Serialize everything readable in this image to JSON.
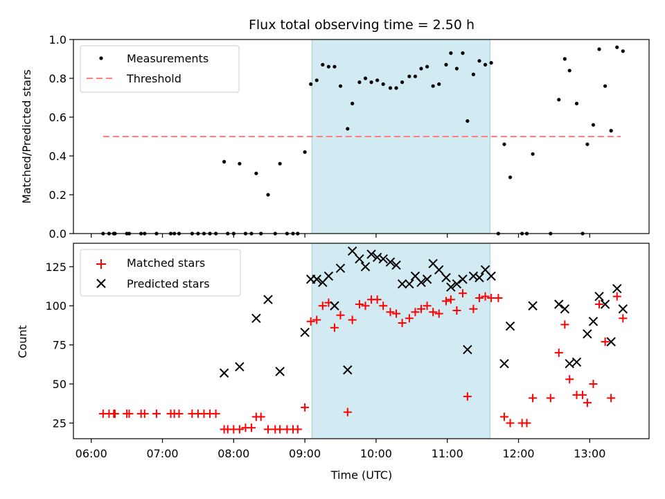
{
  "title": "Flux total observing time = 2.50 h",
  "colors": {
    "measurement": "#000000",
    "threshold": "#ff7f7f",
    "matched": "#ff0000",
    "predicted": "#000000",
    "shade": "#add8e6"
  },
  "chart_data": [
    {
      "type": "scatter",
      "ylabel": "Matched/Predicted stars",
      "xlabel": "",
      "xlim": [
        "05:45",
        "13:50"
      ],
      "ylim": [
        0,
        1.0
      ],
      "yticks": [
        "0.0",
        "0.2",
        "0.4",
        "0.6",
        "0.8",
        "1.0"
      ],
      "grid": false,
      "legend": "top-left",
      "shaded_interval": [
        "09:06",
        "11:36"
      ],
      "threshold": {
        "name": "Threshold",
        "y": 0.5,
        "x": [
          "06:10",
          "13:26"
        ]
      },
      "series": [
        {
          "name": "Measurements",
          "points": [
            [
              "06:10",
              0
            ],
            [
              "06:15",
              0
            ],
            [
              "06:19",
              0
            ],
            [
              "06:20",
              0
            ],
            [
              "06:30",
              0
            ],
            [
              "06:32",
              0
            ],
            [
              "06:42",
              0
            ],
            [
              "06:45",
              0
            ],
            [
              "06:55",
              0
            ],
            [
              "07:07",
              0
            ],
            [
              "07:10",
              0
            ],
            [
              "07:14",
              0
            ],
            [
              "07:25",
              0
            ],
            [
              "07:30",
              0
            ],
            [
              "07:35",
              0
            ],
            [
              "07:40",
              0
            ],
            [
              "07:45",
              0
            ],
            [
              "07:52",
              0.37
            ],
            [
              "07:55",
              0
            ],
            [
              "08:00",
              0
            ],
            [
              "08:05",
              0.36
            ],
            [
              "08:10",
              0
            ],
            [
              "08:15",
              0
            ],
            [
              "08:19",
              0.31
            ],
            [
              "08:23",
              0
            ],
            [
              "08:29",
              0.2
            ],
            [
              "08:35",
              0
            ],
            [
              "08:39",
              0.36
            ],
            [
              "08:45",
              0
            ],
            [
              "08:50",
              0
            ],
            [
              "08:54",
              0
            ],
            [
              "09:00",
              0.42
            ],
            [
              "09:05",
              0.77
            ],
            [
              "09:10",
              0.79
            ],
            [
              "09:15",
              0.87
            ],
            [
              "09:20",
              0.86
            ],
            [
              "09:25",
              0.86
            ],
            [
              "09:30",
              0.76
            ],
            [
              "09:36",
              0.54
            ],
            [
              "09:40",
              0.67
            ],
            [
              "09:46",
              0.78
            ],
            [
              "09:51",
              0.8
            ],
            [
              "09:56",
              0.78
            ],
            [
              "10:01",
              0.79
            ],
            [
              "10:06",
              0.77
            ],
            [
              "10:12",
              0.75
            ],
            [
              "10:17",
              0.75
            ],
            [
              "10:22",
              0.78
            ],
            [
              "10:28",
              0.81
            ],
            [
              "10:33",
              0.81
            ],
            [
              "10:38",
              0.85
            ],
            [
              "10:43",
              0.86
            ],
            [
              "10:48",
              0.76
            ],
            [
              "10:53",
              0.77
            ],
            [
              "10:59",
              0.87
            ],
            [
              "11:03",
              0.93
            ],
            [
              "11:08",
              0.85
            ],
            [
              "11:13",
              0.93
            ],
            [
              "11:17",
              0.58
            ],
            [
              "11:22",
              0.82
            ],
            [
              "11:27",
              0.89
            ],
            [
              "11:32",
              0.87
            ],
            [
              "11:37",
              0.88
            ],
            [
              "11:43",
              0
            ],
            [
              "11:48",
              0.46
            ],
            [
              "11:53",
              0.29
            ],
            [
              "12:03",
              0
            ],
            [
              "12:07",
              0
            ],
            [
              "12:12",
              0.41
            ],
            [
              "12:27",
              0
            ],
            [
              "12:34",
              0.69
            ],
            [
              "12:39",
              0.9
            ],
            [
              "12:43",
              0.84
            ],
            [
              "12:49",
              0.67
            ],
            [
              "12:54",
              0
            ],
            [
              "12:58",
              0.46
            ],
            [
              "13:03",
              0.56
            ],
            [
              "13:08",
              0.95
            ],
            [
              "13:13",
              0.76
            ],
            [
              "13:18",
              0.53
            ],
            [
              "13:23",
              0.96
            ],
            [
              "13:28",
              0.94
            ]
          ]
        }
      ]
    },
    {
      "type": "scatter",
      "xlabel": "Time (UTC)",
      "ylabel": "Count",
      "xlim": [
        "05:45",
        "13:50"
      ],
      "ylim": [
        15,
        140
      ],
      "yticks": [
        "25",
        "50",
        "75",
        "100",
        "125"
      ],
      "xticks": [
        "06:00",
        "07:00",
        "08:00",
        "09:00",
        "10:00",
        "11:00",
        "12:00",
        "13:00"
      ],
      "grid": false,
      "legend": "top-left",
      "shaded_interval": [
        "09:06",
        "11:36"
      ],
      "series": [
        {
          "name": "Matched stars",
          "marker": "+",
          "points": [
            [
              "06:10",
              31
            ],
            [
              "06:15",
              31
            ],
            [
              "06:19",
              31
            ],
            [
              "06:20",
              31
            ],
            [
              "06:30",
              31
            ],
            [
              "06:32",
              31
            ],
            [
              "06:42",
              31
            ],
            [
              "06:45",
              31
            ],
            [
              "06:55",
              31
            ],
            [
              "07:07",
              31
            ],
            [
              "07:10",
              31
            ],
            [
              "07:14",
              31
            ],
            [
              "07:25",
              31
            ],
            [
              "07:30",
              31
            ],
            [
              "07:35",
              31
            ],
            [
              "07:40",
              31
            ],
            [
              "07:45",
              31
            ],
            [
              "07:52",
              21
            ],
            [
              "07:55",
              21
            ],
            [
              "08:00",
              21
            ],
            [
              "08:05",
              21
            ],
            [
              "08:10",
              22
            ],
            [
              "08:15",
              22
            ],
            [
              "08:19",
              29
            ],
            [
              "08:23",
              29
            ],
            [
              "08:29",
              21
            ],
            [
              "08:35",
              21
            ],
            [
              "08:39",
              21
            ],
            [
              "08:45",
              21
            ],
            [
              "08:50",
              21
            ],
            [
              "08:54",
              21
            ],
            [
              "09:00",
              35
            ],
            [
              "09:05",
              90
            ],
            [
              "09:10",
              91
            ],
            [
              "09:15",
              100
            ],
            [
              "09:20",
              102
            ],
            [
              "09:25",
              86
            ],
            [
              "09:30",
              94
            ],
            [
              "09:36",
              32
            ],
            [
              "09:40",
              91
            ],
            [
              "09:46",
              101
            ],
            [
              "09:51",
              100
            ],
            [
              "09:56",
              104
            ],
            [
              "10:01",
              104
            ],
            [
              "10:06",
              100
            ],
            [
              "10:12",
              96
            ],
            [
              "10:17",
              95
            ],
            [
              "10:22",
              89
            ],
            [
              "10:28",
              92
            ],
            [
              "10:33",
              96
            ],
            [
              "10:38",
              98
            ],
            [
              "10:43",
              100
            ],
            [
              "10:48",
              96
            ],
            [
              "10:53",
              95
            ],
            [
              "10:59",
              103
            ],
            [
              "11:03",
              104
            ],
            [
              "11:08",
              97
            ],
            [
              "11:13",
              108
            ],
            [
              "11:17",
              42
            ],
            [
              "11:22",
              98
            ],
            [
              "11:27",
              105
            ],
            [
              "11:32",
              106
            ],
            [
              "11:37",
              105
            ],
            [
              "11:43",
              105
            ],
            [
              "11:48",
              29
            ],
            [
              "11:53",
              25
            ],
            [
              "12:03",
              25
            ],
            [
              "12:07",
              25
            ],
            [
              "12:12",
              41
            ],
            [
              "12:27",
              41
            ],
            [
              "12:34",
              70
            ],
            [
              "12:39",
              88
            ],
            [
              "12:43",
              53
            ],
            [
              "12:49",
              43
            ],
            [
              "12:54",
              43
            ],
            [
              "12:58",
              38
            ],
            [
              "13:03",
              50
            ],
            [
              "13:08",
              101
            ],
            [
              "13:13",
              77
            ],
            [
              "13:18",
              41
            ],
            [
              "13:23",
              106
            ],
            [
              "13:28",
              92
            ]
          ]
        },
        {
          "name": "Predicted stars",
          "marker": "x",
          "points": [
            [
              "07:52",
              57
            ],
            [
              "08:05",
              61
            ],
            [
              "08:19",
              92
            ],
            [
              "08:29",
              104
            ],
            [
              "08:39",
              58
            ],
            [
              "09:00",
              83
            ],
            [
              "09:05",
              117
            ],
            [
              "09:10",
              117
            ],
            [
              "09:15",
              115
            ],
            [
              "09:20",
              119
            ],
            [
              "09:25",
              100
            ],
            [
              "09:30",
              124
            ],
            [
              "09:36",
              59
            ],
            [
              "09:40",
              135
            ],
            [
              "09:46",
              130
            ],
            [
              "09:51",
              125
            ],
            [
              "09:56",
              133
            ],
            [
              "10:01",
              131
            ],
            [
              "10:06",
              130
            ],
            [
              "10:12",
              128
            ],
            [
              "10:17",
              126
            ],
            [
              "10:22",
              114
            ],
            [
              "10:28",
              114
            ],
            [
              "10:33",
              119
            ],
            [
              "10:38",
              115
            ],
            [
              "10:43",
              117
            ],
            [
              "10:48",
              127
            ],
            [
              "10:53",
              123
            ],
            [
              "10:59",
              118
            ],
            [
              "11:03",
              112
            ],
            [
              "11:08",
              114
            ],
            [
              "11:13",
              117
            ],
            [
              "11:17",
              72
            ],
            [
              "11:22",
              119
            ],
            [
              "11:27",
              118
            ],
            [
              "11:32",
              123
            ],
            [
              "11:37",
              119
            ],
            [
              "11:48",
              63
            ],
            [
              "11:53",
              87
            ],
            [
              "12:12",
              100
            ],
            [
              "12:34",
              101
            ],
            [
              "12:39",
              98
            ],
            [
              "12:43",
              63
            ],
            [
              "12:49",
              64
            ],
            [
              "12:58",
              82
            ],
            [
              "13:03",
              90
            ],
            [
              "13:08",
              106
            ],
            [
              "13:13",
              101
            ],
            [
              "13:18",
              77
            ],
            [
              "13:23",
              111
            ],
            [
              "13:28",
              98
            ]
          ]
        }
      ]
    }
  ]
}
